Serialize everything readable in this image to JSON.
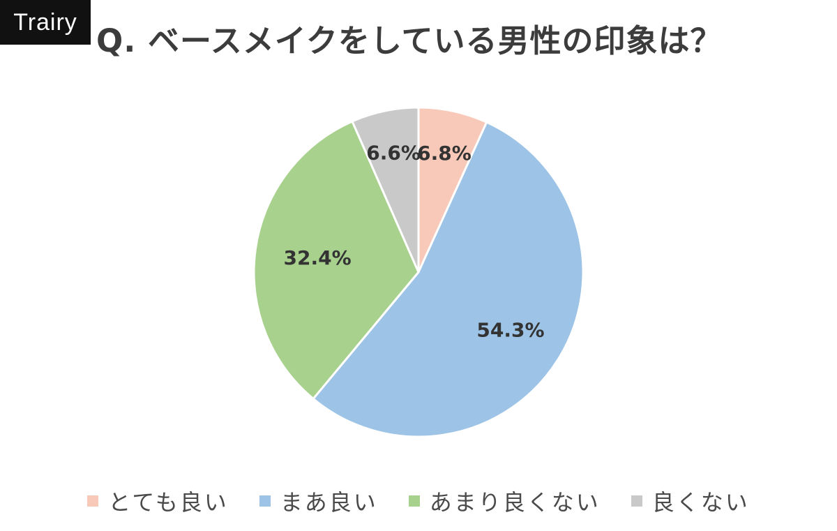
{
  "brand": {
    "label": "Trairy"
  },
  "chart_data": {
    "type": "pie",
    "title": "Q. ベースメイクをしている男性の印象は？",
    "slices": [
      {
        "label": "とても良い",
        "value": 6.8,
        "value_label": "6.8%",
        "color": "#f8c9b9"
      },
      {
        "label": "まあ良い",
        "value": 54.3,
        "value_label": "54.3%",
        "color": "#9dc3e6"
      },
      {
        "label": "あまり良くない",
        "value": 32.4,
        "value_label": "32.4%",
        "color": "#a9d18e"
      },
      {
        "label": "良くない",
        "value": 6.6,
        "value_label": "6.6%",
        "color": "#c9c9c9"
      }
    ],
    "legend_position": "bottom",
    "start": "12 o'clock, clockwise"
  }
}
